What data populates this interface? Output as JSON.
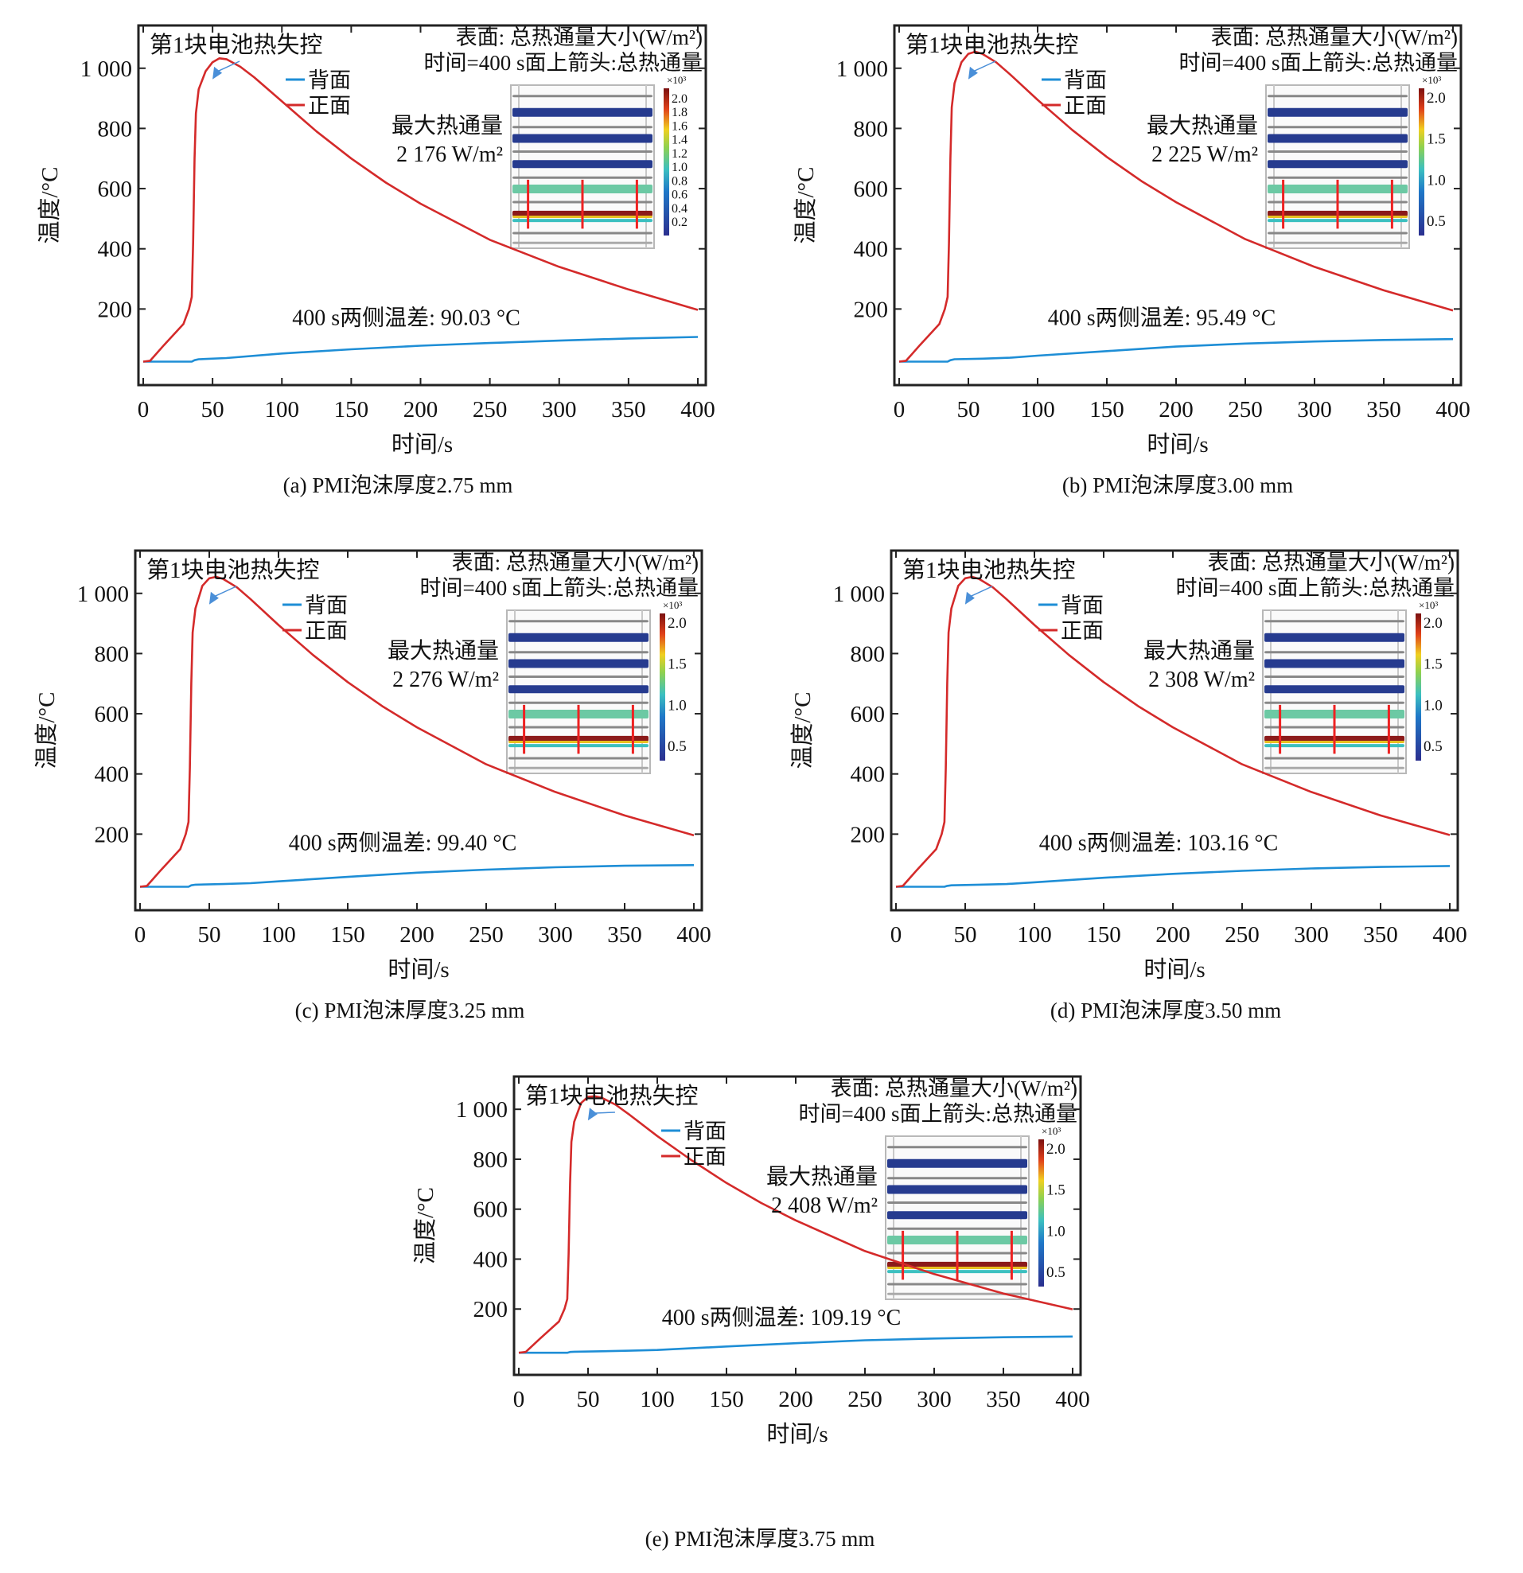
{
  "colors": {
    "front": "#d42a2a",
    "back": "#1e8ed6",
    "arrow": "#4a8fd8",
    "axis": "#222222",
    "slab_blue": "#263b8f",
    "slab_green": "#6cc9a4",
    "slab_red": "#8b1a1a"
  },
  "chart_data": [
    {
      "id": "a",
      "type": "line",
      "caption": "(a) PMI泡沫厚度2.75 mm",
      "xlabel": "时间/s",
      "ylabel": "温度/°C",
      "xlim": [
        0,
        400
      ],
      "ylim": [
        0,
        1150
      ],
      "xticks": [
        "0",
        "50",
        "100",
        "150",
        "200",
        "250",
        "300",
        "350",
        "400"
      ],
      "yticks": [
        {
          "v": 200,
          "label": "200"
        },
        {
          "v": 400,
          "label": "400"
        },
        {
          "v": 600,
          "label": "600"
        },
        {
          "v": 800,
          "label": "800"
        },
        {
          "v": 1000,
          "label": "1 000"
        }
      ],
      "legend": [
        "背面",
        "正面"
      ],
      "annotation_runaway": "第1块电池热失控",
      "surface_title": "表面: 总热通量大小(W/m²)",
      "time_title": "时间=400 s面上箭头:总热通量",
      "max_flux_label": "最大热通量",
      "max_flux_value": "2 176 W/m²",
      "delta_label": "400 s两侧温差: 90.03 °C",
      "colorbar_exp": "×10³",
      "colorbar_ticks": [
        "2.0",
        "1.8",
        "1.6",
        "1.4",
        "1.2",
        "1.0",
        "0.8",
        "0.6",
        "0.4",
        "0.2"
      ],
      "series": [
        {
          "name": "背面",
          "x": [
            0,
            5,
            35,
            37,
            40,
            60,
            100,
            150,
            200,
            250,
            300,
            350,
            400
          ],
          "y": [
            25,
            25,
            25,
            30,
            33,
            37,
            52,
            66,
            78,
            87,
            95,
            102,
            107
          ]
        },
        {
          "name": "正面",
          "x": [
            0,
            5,
            15,
            29,
            33,
            35,
            36,
            37,
            38,
            40,
            45,
            50,
            55,
            60,
            70,
            80,
            100,
            125,
            150,
            175,
            200,
            250,
            300,
            350,
            400
          ],
          "y": [
            25,
            28,
            80,
            150,
            200,
            240,
            420,
            700,
            850,
            930,
            990,
            1020,
            1033,
            1030,
            1005,
            970,
            890,
            790,
            700,
            620,
            550,
            430,
            340,
            265,
            197
          ]
        }
      ]
    },
    {
      "id": "b",
      "type": "line",
      "caption": "(b) PMI泡沫厚度3.00 mm",
      "xlabel": "时间/s",
      "ylabel": "温度/°C",
      "xlim": [
        0,
        400
      ],
      "ylim": [
        0,
        1150
      ],
      "xticks": [
        "0",
        "50",
        "100",
        "150",
        "200",
        "250",
        "300",
        "350",
        "400"
      ],
      "yticks": [
        {
          "v": 200,
          "label": "200"
        },
        {
          "v": 400,
          "label": "400"
        },
        {
          "v": 600,
          "label": "600"
        },
        {
          "v": 800,
          "label": "800"
        },
        {
          "v": 1000,
          "label": "1 000"
        }
      ],
      "legend": [
        "背面",
        "正面"
      ],
      "annotation_runaway": "第1块电池热失控",
      "surface_title": "表面: 总热通量大小(W/m²)",
      "time_title": "时间=400 s面上箭头:总热通量",
      "max_flux_label": "最大热通量",
      "max_flux_value": "2 225 W/m²",
      "delta_label": "400 s两侧温差: 95.49 °C",
      "colorbar_exp": "×10³",
      "colorbar_ticks": [
        "2.0",
        "1.5",
        "1.0",
        "0.5"
      ],
      "series": [
        {
          "name": "背面",
          "x": [
            0,
            5,
            35,
            37,
            40,
            60,
            80,
            100,
            150,
            200,
            250,
            300,
            350,
            400
          ],
          "y": [
            25,
            25,
            25,
            30,
            33,
            35,
            38,
            45,
            60,
            75,
            85,
            92,
            97,
            100
          ]
        },
        {
          "name": "正面",
          "x": [
            0,
            5,
            15,
            29,
            33,
            35,
            36,
            37,
            38,
            40,
            45,
            50,
            55,
            60,
            70,
            80,
            100,
            125,
            150,
            175,
            200,
            250,
            300,
            350,
            400
          ],
          "y": [
            25,
            28,
            80,
            150,
            200,
            240,
            420,
            700,
            870,
            950,
            1020,
            1048,
            1055,
            1048,
            1020,
            980,
            895,
            795,
            705,
            625,
            555,
            432,
            340,
            262,
            195
          ]
        }
      ]
    },
    {
      "id": "c",
      "type": "line",
      "caption": "(c) PMI泡沫厚度3.25 mm",
      "xlabel": "时间/s",
      "ylabel": "温度/°C",
      "xlim": [
        0,
        400
      ],
      "ylim": [
        0,
        1150
      ],
      "xticks": [
        "0",
        "50",
        "100",
        "150",
        "200",
        "250",
        "300",
        "350",
        "400"
      ],
      "yticks": [
        {
          "v": 200,
          "label": "200"
        },
        {
          "v": 400,
          "label": "400"
        },
        {
          "v": 600,
          "label": "600"
        },
        {
          "v": 800,
          "label": "800"
        },
        {
          "v": 1000,
          "label": "1 000"
        }
      ],
      "legend": [
        "背面",
        "正面"
      ],
      "annotation_runaway": "第1块电池热失控",
      "surface_title": "表面: 总热通量大小(W/m²)",
      "time_title": "时间=400 s面上箭头:总热通量",
      "max_flux_label": "最大热通量",
      "max_flux_value": "2 276 W/m²",
      "delta_label": "400 s两侧温差: 99.40 °C",
      "colorbar_exp": "×10³",
      "colorbar_ticks": [
        "2.0",
        "1.5",
        "1.0",
        "0.5"
      ],
      "series": [
        {
          "name": "背面",
          "x": [
            0,
            5,
            35,
            37,
            40,
            60,
            80,
            100,
            150,
            200,
            250,
            300,
            350,
            400
          ],
          "y": [
            25,
            25,
            25,
            30,
            32,
            34,
            37,
            43,
            58,
            72,
            82,
            90,
            95,
            97
          ]
        },
        {
          "name": "正面",
          "x": [
            0,
            5,
            15,
            29,
            33,
            35,
            36,
            37,
            38,
            40,
            45,
            50,
            55,
            60,
            70,
            80,
            100,
            125,
            150,
            175,
            200,
            250,
            300,
            350,
            400
          ],
          "y": [
            25,
            28,
            80,
            150,
            200,
            240,
            420,
            700,
            870,
            950,
            1025,
            1050,
            1055,
            1048,
            1020,
            980,
            895,
            795,
            705,
            625,
            555,
            432,
            340,
            262,
            196
          ]
        }
      ]
    },
    {
      "id": "d",
      "type": "line",
      "caption": "(d) PMI泡沫厚度3.50 mm",
      "xlabel": "时间/s",
      "ylabel": "温度/°C",
      "xlim": [
        0,
        400
      ],
      "ylim": [
        0,
        1150
      ],
      "xticks": [
        "0",
        "50",
        "100",
        "150",
        "200",
        "250",
        "300",
        "350",
        "400"
      ],
      "yticks": [
        {
          "v": 200,
          "label": "200"
        },
        {
          "v": 400,
          "label": "400"
        },
        {
          "v": 600,
          "label": "600"
        },
        {
          "v": 800,
          "label": "800"
        },
        {
          "v": 1000,
          "label": "1 000"
        }
      ],
      "legend": [
        "背面",
        "正面"
      ],
      "annotation_runaway": "第1块电池热失控",
      "surface_title": "表面: 总热通量大小(W/m²)",
      "time_title": "时间=400 s面上箭头:总热通量",
      "max_flux_label": "最大热通量",
      "max_flux_value": "2 308 W/m²",
      "delta_label": "400 s两侧温差: 103.16 °C",
      "colorbar_exp": "×10³",
      "colorbar_ticks": [
        "2.0",
        "1.5",
        "1.0",
        "0.5"
      ],
      "series": [
        {
          "name": "背面",
          "x": [
            0,
            5,
            35,
            37,
            40,
            60,
            80,
            100,
            150,
            200,
            250,
            300,
            350,
            400
          ],
          "y": [
            25,
            25,
            25,
            28,
            30,
            32,
            34,
            40,
            55,
            68,
            78,
            86,
            91,
            94
          ]
        },
        {
          "name": "正面",
          "x": [
            0,
            5,
            15,
            29,
            33,
            35,
            36,
            37,
            38,
            40,
            45,
            50,
            55,
            60,
            70,
            80,
            100,
            125,
            150,
            175,
            200,
            250,
            300,
            350,
            400
          ],
          "y": [
            25,
            28,
            80,
            150,
            200,
            240,
            420,
            700,
            870,
            950,
            1025,
            1050,
            1055,
            1048,
            1020,
            980,
            895,
            795,
            705,
            625,
            555,
            432,
            340,
            262,
            197
          ]
        }
      ]
    },
    {
      "id": "e",
      "type": "line",
      "caption": "(e) PMI泡沫厚度3.75 mm",
      "xlabel": "时间/s",
      "ylabel": "温度/°C",
      "xlim": [
        0,
        400
      ],
      "ylim": [
        0,
        1150
      ],
      "xticks": [
        "0",
        "50",
        "100",
        "150",
        "200",
        "250",
        "300",
        "350",
        "400"
      ],
      "yticks": [
        {
          "v": 200,
          "label": "200"
        },
        {
          "v": 400,
          "label": "400"
        },
        {
          "v": 600,
          "label": "600"
        },
        {
          "v": 800,
          "label": "800"
        },
        {
          "v": 1000,
          "label": "1 000"
        }
      ],
      "legend": [
        "背面",
        "正面"
      ],
      "annotation_runaway": "第1块电池热失控",
      "surface_title": "表面: 总热通量大小(W/m²)",
      "time_title": "时间=400 s面上箭头:总热通量",
      "max_flux_label": "最大热通量",
      "max_flux_value": "2 408 W/m²",
      "delta_label": "400 s两侧温差: 109.19 °C",
      "colorbar_exp": "×10³",
      "colorbar_ticks": [
        "2.0",
        "1.5",
        "1.0",
        "0.5"
      ],
      "series": [
        {
          "name": "背面",
          "x": [
            0,
            5,
            35,
            37,
            40,
            60,
            80,
            100,
            150,
            200,
            250,
            300,
            350,
            400
          ],
          "y": [
            25,
            25,
            25,
            28,
            29,
            31,
            33,
            36,
            50,
            63,
            75,
            82,
            87,
            90
          ]
        },
        {
          "name": "正面",
          "x": [
            0,
            5,
            15,
            29,
            33,
            35,
            36,
            37,
            38,
            40,
            45,
            50,
            55,
            60,
            70,
            80,
            100,
            125,
            150,
            175,
            200,
            250,
            300,
            350,
            400
          ],
          "y": [
            25,
            28,
            80,
            150,
            200,
            240,
            420,
            700,
            870,
            950,
            1025,
            1050,
            1052,
            1046,
            1018,
            978,
            893,
            795,
            705,
            625,
            555,
            432,
            340,
            262,
            199
          ]
        }
      ]
    }
  ]
}
